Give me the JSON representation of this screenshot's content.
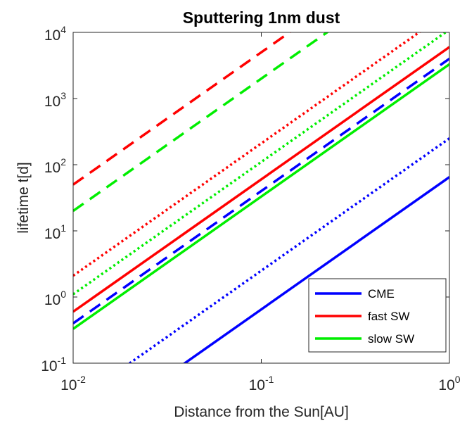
{
  "chart_data": {
    "type": "line",
    "title": "Sputtering 1nm dust",
    "xlabel": "Distance from the Sun[AU]",
    "ylabel": "lifetime t[d]",
    "xscale": "log",
    "yscale": "log",
    "xlim": [
      0.01,
      1
    ],
    "ylim": [
      0.1,
      10000
    ],
    "grid": false,
    "legend_position": "bottom-right",
    "x_ticks": [
      {
        "base": "10",
        "exp": "-2",
        "value": 0.01
      },
      {
        "base": "10",
        "exp": "-1",
        "value": 0.1
      },
      {
        "base": "10",
        "exp": "0",
        "value": 1
      }
    ],
    "y_ticks": [
      {
        "base": "10",
        "exp": "-1",
        "value": 0.1
      },
      {
        "base": "10",
        "exp": "0",
        "value": 1
      },
      {
        "base": "10",
        "exp": "1",
        "value": 10
      },
      {
        "base": "10",
        "exp": "2",
        "value": 100
      },
      {
        "base": "10",
        "exp": "3",
        "value": 1000
      },
      {
        "base": "10",
        "exp": "4",
        "value": 10000
      }
    ],
    "legend": [
      {
        "label": "CME",
        "color": "#0000ff"
      },
      {
        "label": "fast SW",
        "color": "#ff0000"
      },
      {
        "label": "slow SW",
        "color": "#00ee00"
      }
    ],
    "series": [
      {
        "color": "#0000ff",
        "style": "solid",
        "x": [
          0.01,
          1
        ],
        "y": [
          0.0065,
          65
        ]
      },
      {
        "color": "#0000ff",
        "style": "dotted",
        "x": [
          0.01,
          1
        ],
        "y": [
          0.025,
          250
        ]
      },
      {
        "color": "#0000ff",
        "style": "dashed",
        "x": [
          0.01,
          1
        ],
        "y": [
          0.4,
          4000
        ]
      },
      {
        "color": "#ff0000",
        "style": "solid",
        "x": [
          0.01,
          1
        ],
        "y": [
          0.6,
          6000
        ]
      },
      {
        "color": "#ff0000",
        "style": "dotted",
        "x": [
          0.01,
          1
        ],
        "y": [
          2.1,
          21000
        ]
      },
      {
        "color": "#ff0000",
        "style": "dashed",
        "x": [
          0.01,
          1
        ],
        "y": [
          50,
          500000
        ]
      },
      {
        "color": "#00ee00",
        "style": "solid",
        "x": [
          0.01,
          1
        ],
        "y": [
          0.33,
          3300
        ]
      },
      {
        "color": "#00ee00",
        "style": "dotted",
        "x": [
          0.01,
          1
        ],
        "y": [
          1.1,
          11000
        ]
      },
      {
        "color": "#00ee00",
        "style": "dashed",
        "x": [
          0.01,
          1
        ],
        "y": [
          20,
          200000
        ]
      }
    ]
  }
}
